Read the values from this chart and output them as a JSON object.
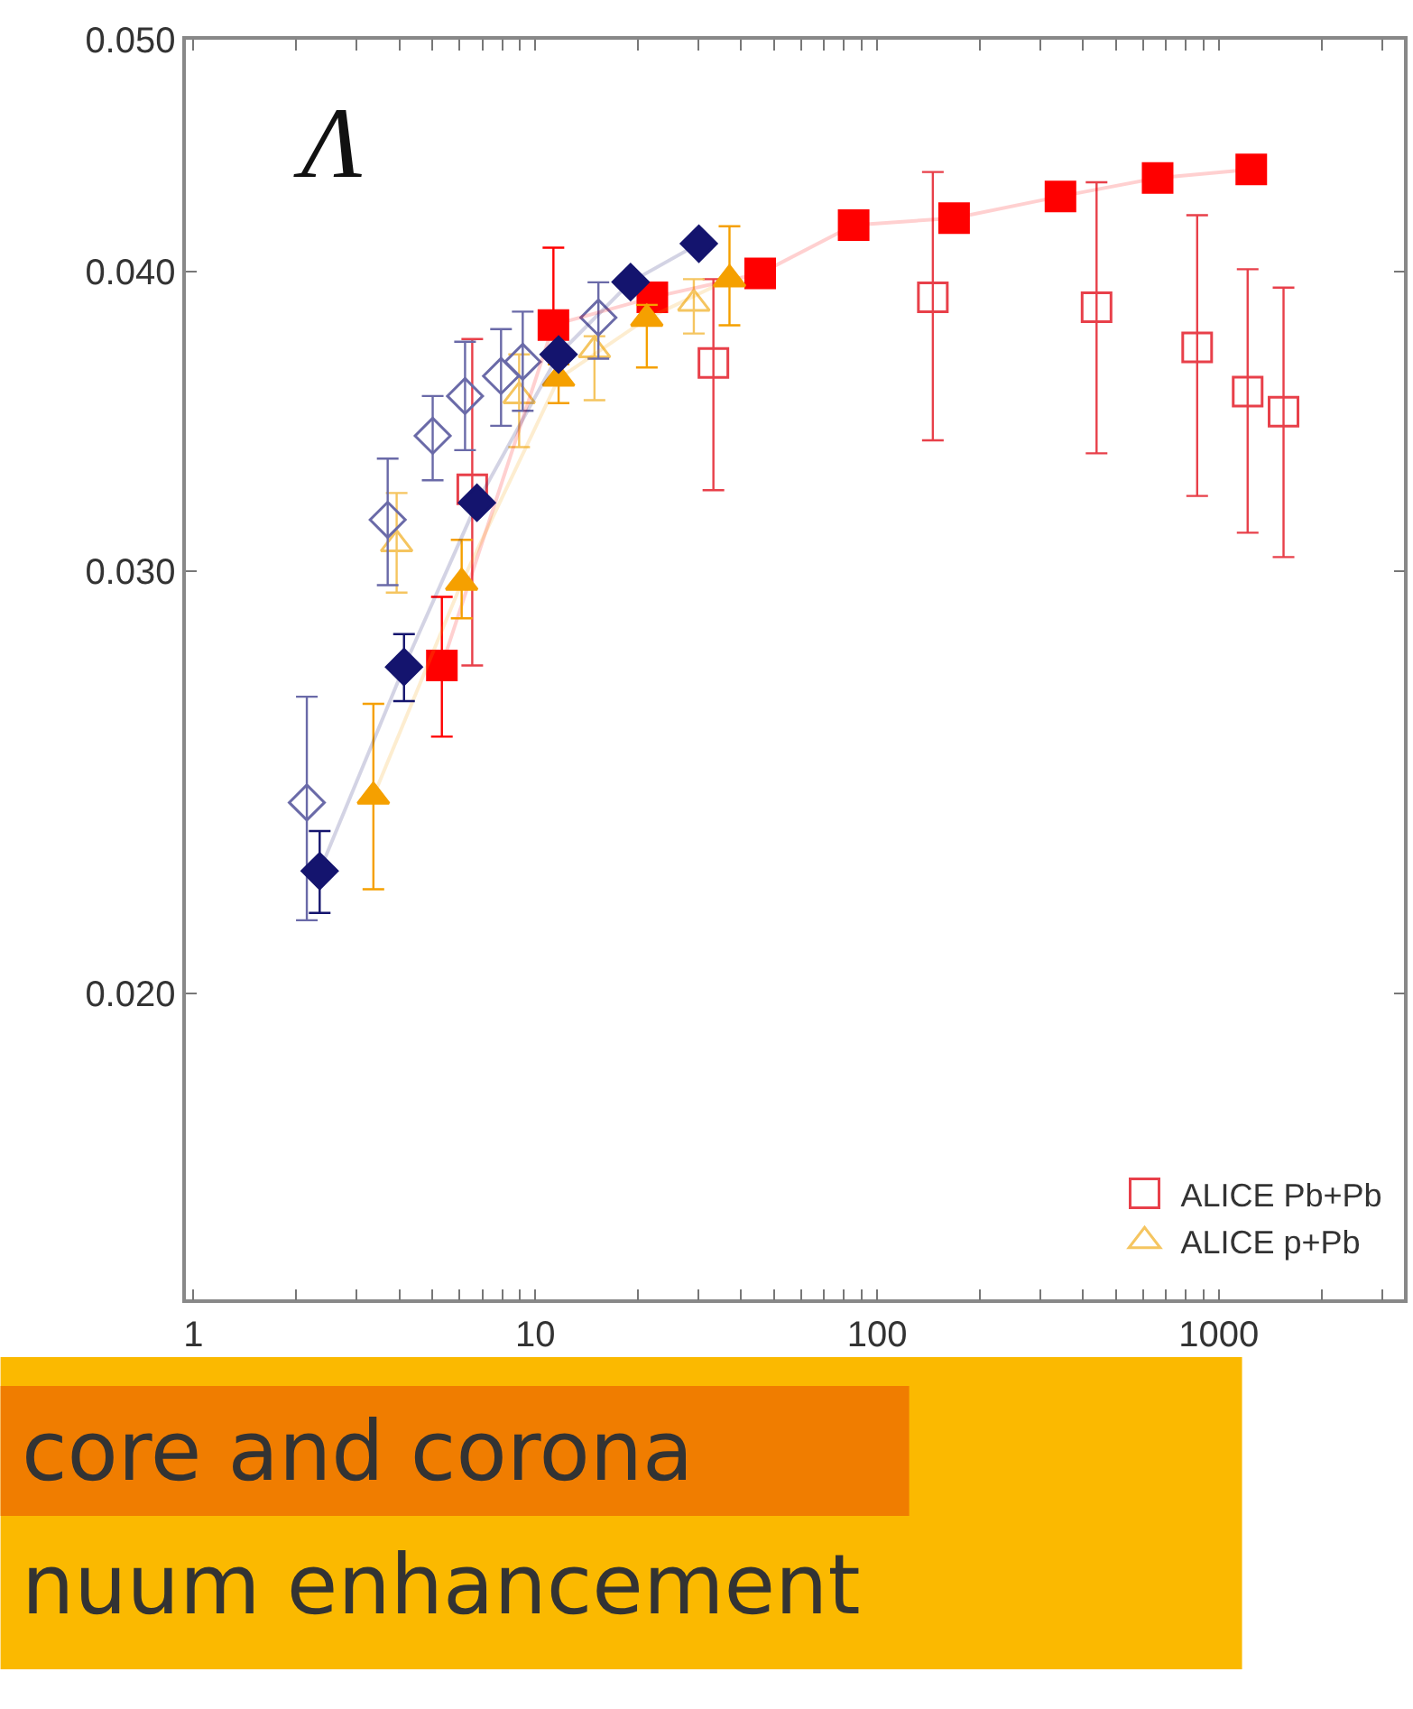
{
  "chart_data": {
    "type": "scatter",
    "log": "xy",
    "grid": false,
    "legend": "bottom right",
    "xlim": [
      0.95,
      3480
    ],
    "ylim": [
      0.0149,
      0.05
    ],
    "xticks": [
      1,
      {
        "value": 2,
        "label": null
      },
      {
        "value": 3,
        "label": null
      },
      {
        "value": 4,
        "label": null
      },
      {
        "value": 5,
        "label": null
      },
      {
        "value": 6,
        "label": null
      },
      {
        "value": 7,
        "label": null
      },
      {
        "value": 8,
        "label": null
      },
      {
        "value": 9,
        "label": null
      },
      10,
      {
        "value": 20,
        "label": null
      },
      {
        "value": 30,
        "label": null
      },
      {
        "value": 40,
        "label": null
      },
      {
        "value": 50,
        "label": null
      },
      {
        "value": 60,
        "label": null
      },
      {
        "value": 70,
        "label": null
      },
      {
        "value": 80,
        "label": null
      },
      {
        "value": 90,
        "label": null
      },
      100,
      {
        "value": 200,
        "label": null
      },
      {
        "value": 300,
        "label": null
      },
      {
        "value": 400,
        "label": null
      },
      {
        "value": 500,
        "label": null
      },
      {
        "value": 600,
        "label": null
      },
      {
        "value": 700,
        "label": null
      },
      {
        "value": 800,
        "label": null
      },
      {
        "value": 900,
        "label": null
      },
      1000,
      {
        "value": 2000,
        "label": null
      },
      {
        "value": 3000,
        "label": null
      }
    ],
    "yticks": [
      {
        "value": 0.02,
        "label": "0.020"
      },
      {
        "value": 0.03,
        "label": "0.030"
      },
      {
        "value": 0.04,
        "label": "0.040"
      },
      {
        "value": 0.05,
        "label": "0.050"
      }
    ],
    "annotations": [
      "Λ",
      "core and corona",
      "nuum enhancement"
    ],
    "series": [
      {
        "name": "ALICE Pb+Pb",
        "marker": "square-open",
        "color": "#e8404a",
        "x": [
          6.54,
          33.2,
          145.6,
          438.7,
          864,
          1214,
          1546
        ],
        "values": [
          0.03246,
          0.03665,
          0.03903,
          0.03866,
          0.0372,
          0.03565,
          0.03497
        ],
        "errors": [
          [
            0.0274,
            0.0375
          ],
          [
            0.03243,
            0.03972
          ],
          [
            0.03402,
            0.04403
          ],
          [
            0.0336,
            0.0436
          ],
          [
            0.03225,
            0.04224
          ],
          [
            0.03113,
            0.0401
          ],
          [
            0.03041,
            0.0394
          ]
        ]
      },
      {
        "name": "ALICE p+Pb",
        "marker": "triangle-open",
        "color": "#f5c560",
        "x": [
          3.93,
          8.97,
          14.9,
          29.1
        ],
        "values": [
          0.03079,
          0.0355,
          0.0371,
          0.0388
        ],
        "errors": [
          [
            0.02939,
            0.03234
          ],
          [
            0.0338,
            0.03695
          ],
          [
            0.03536,
            0.0376
          ],
          [
            0.0377,
            0.03972
          ]
        ]
      },
      {
        "marker": "diamond-open",
        "color": "#6a6aa8",
        "x": [
          2.146,
          3.7,
          5.01,
          6.23,
          7.94,
          9.19,
          15.3
        ],
        "values": [
          0.02402,
          0.03152,
          0.03417,
          0.0355,
          0.03619,
          0.03669,
          0.03828
        ],
        "errors": [
          [
            0.02145,
            0.02659
          ],
          [
            0.0296,
            0.03343
          ],
          [
            0.03274,
            0.0355
          ],
          [
            0.0337,
            0.0374
          ],
          [
            0.0345,
            0.03786
          ],
          [
            0.035,
            0.0385
          ],
          [
            0.0368,
            0.0396
          ]
        ]
      },
      {
        "type": "line",
        "marker": "square",
        "color": "#ff0000",
        "x": [
          5.33,
          11.3,
          22.0,
          45.5,
          85.4,
          168,
          344,
          662,
          1244
        ],
        "values": [
          0.0274,
          0.03801,
          0.03903,
          0.03994,
          0.04184,
          0.04212,
          0.04301,
          0.04378,
          0.04414
        ],
        "errors": [
          [
            0.02559,
            0.02927
          ],
          [
            0.0379,
            0.04094
          ],
          null,
          null,
          null,
          null,
          null,
          null,
          null
        ]
      },
      {
        "type": "line",
        "marker": "triangle",
        "color": "#f5a000",
        "x": [
          3.36,
          6.09,
          11.7,
          21.2,
          37.0
        ],
        "values": [
          0.02416,
          0.02967,
          0.0361,
          0.03824,
          0.03972
        ],
        "errors": [
          [
            0.0221,
            0.02641
          ],
          [
            0.02867,
            0.03092
          ],
          [
            0.03526,
            0.0366
          ],
          [
            0.03649,
            0.03875
          ],
          [
            0.038,
            0.04179
          ]
        ]
      },
      {
        "type": "line",
        "marker": "diamond",
        "color": "#14146e",
        "x": [
          2.34,
          4.13,
          6.75,
          11.7,
          19.0,
          30.1
        ],
        "values": [
          0.02249,
          0.02736,
          0.03204,
          0.03695,
          0.03961,
          0.0411
        ],
        "errors": [
          [
            0.0216,
            0.02337
          ],
          [
            0.02648,
            0.02824
          ],
          null,
          null,
          null,
          null
        ]
      }
    ]
  }
}
